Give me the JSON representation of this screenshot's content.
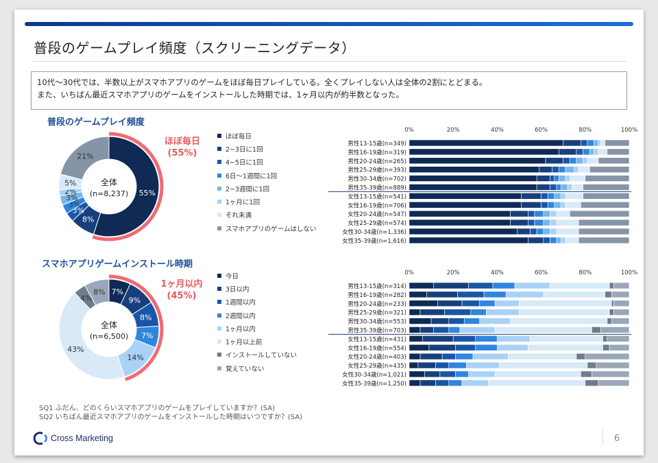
{
  "page": {
    "title": "普段のゲームプレイ頻度（スクリーニングデータ）",
    "summary_line1": "10代～30代では、半数以上がスマホアプリのゲームをほぼ毎日プレイしている。全くプレイしない人は全体の2割にとどまる。",
    "summary_line2": "また、いちばん最近スマホアプリのゲームをインストールした時期では、1ヶ月以内が約半数となった。",
    "footnote1": "SQ1  ふだん、どのくらいスマホアプリのゲームをプレイしていますか？(SA)",
    "footnote2": "SQ2  いちばん最近スマホアプリのゲームをインストールした時期はいつですか？(SA)",
    "logo_text": "Cross Marketing",
    "page_number": "6"
  },
  "chart_data": [
    {
      "type": "pie",
      "title": "普段のゲームプレイ頻度",
      "center_label": "全体",
      "center_n": "(n=8,237)",
      "callout_label": "ほぼ毎日",
      "callout_value": "(55%)",
      "slices": [
        {
          "label": "ほぼ毎日",
          "value": 55,
          "color": "#0e2a55"
        },
        {
          "label": "2~3日に1回",
          "value": 8,
          "color": "#173f7c"
        },
        {
          "label": "4~5日に1回",
          "value": 3,
          "color": "#1a56a8"
        },
        {
          "label": "6日～1週間に1回",
          "value": 3,
          "color": "#2f86de"
        },
        {
          "label": "2~3週間に1回",
          "value": 3,
          "color": "#74b6ef"
        },
        {
          "label": "1ヶ月に1回",
          "value": 2,
          "color": "#a9d2f6"
        },
        {
          "label": "それ未満",
          "value": 5,
          "color": "#d8e9f8"
        },
        {
          "label": "スマホアプリのゲームはしない",
          "value": 21,
          "color": "#8694a8"
        }
      ]
    },
    {
      "type": "bar",
      "stacked": true,
      "orientation": "horizontal",
      "xlim": [
        0,
        100
      ],
      "ticks": [
        "0%",
        "20%",
        "40%",
        "60%",
        "80%",
        "100%"
      ],
      "categories": [
        "男性13-15歳(n=349)",
        "男性16-19歳(n=319)",
        "男性20-24歳(n=265)",
        "男性25-29歳(n=393)",
        "男性30-34歳(n=702)",
        "男性35-39歳(n=889)",
        "女性13-15歳(n=541)",
        "女性16-19歳(n=706)",
        "女性20-24歳(n=547)",
        "女性25-29歳(n=574)",
        "女性30-34歳(n=1,336)",
        "女性35-39歳(n=1,616)"
      ],
      "series_colors": [
        "#0e2a55",
        "#173f7c",
        "#1a56a8",
        "#2f86de",
        "#74b6ef",
        "#a9d2f6",
        "#d8e9f8",
        "#8694a8"
      ],
      "rows": [
        [
          70,
          8,
          3,
          3,
          2,
          1,
          2,
          11
        ],
        [
          68,
          8,
          3,
          3,
          2,
          2,
          4,
          10
        ],
        [
          62,
          8,
          3,
          3,
          3,
          2,
          5,
          14
        ],
        [
          59,
          6,
          3,
          3,
          4,
          2,
          5,
          18
        ],
        [
          58,
          6,
          2,
          2,
          3,
          2,
          7,
          20
        ],
        [
          58,
          6,
          3,
          2,
          3,
          2,
          5,
          21
        ],
        [
          51,
          9,
          3,
          3,
          3,
          2,
          8,
          21
        ],
        [
          51,
          9,
          3,
          3,
          3,
          2,
          7,
          22
        ],
        [
          46,
          8,
          3,
          4,
          3,
          3,
          6,
          27
        ],
        [
          46,
          8,
          3,
          4,
          3,
          3,
          10,
          23
        ],
        [
          49,
          6,
          3,
          3,
          3,
          3,
          10,
          23
        ],
        [
          54,
          7,
          3,
          3,
          2,
          2,
          6,
          23
        ]
      ]
    },
    {
      "type": "pie",
      "title": "スマホアプリゲームインストール時期",
      "center_label": "全体",
      "center_n": "(n=6,500)",
      "callout_label": "1ヶ月以内",
      "callout_value": "(45%)",
      "slices": [
        {
          "label": "今日",
          "value": 7,
          "color": "#0e2a55"
        },
        {
          "label": "3日以内",
          "value": 9,
          "color": "#173f7c"
        },
        {
          "label": "1週間以内",
          "value": 8,
          "color": "#1a56a8"
        },
        {
          "label": "2週間以内",
          "value": 7,
          "color": "#2f86de"
        },
        {
          "label": "1ヶ月以内",
          "value": 14,
          "color": "#a9d2f6"
        },
        {
          "label": "1ヶ月以上前",
          "value": 43,
          "color": "#d8e9f8"
        },
        {
          "label": "インストールしていない",
          "value": 4,
          "color": "#6f7c8c"
        },
        {
          "label": "覚えていない",
          "value": 8,
          "color": "#9aa7b8"
        }
      ]
    },
    {
      "type": "bar",
      "stacked": true,
      "orientation": "horizontal",
      "xlim": [
        0,
        100
      ],
      "ticks": [
        "0%",
        "20%",
        "40%",
        "60%",
        "80%",
        "100%"
      ],
      "categories": [
        "男性13-15歳(n=314)",
        "男性16-19歳(n=282)",
        "男性20-24歳(n=233)",
        "男性25-29歳(n=321)",
        "男性30-34歳(n=553)",
        "男性35-39歳(n=703)",
        "女性13-15歳(n=431)",
        "女性16-19歳(n=554)",
        "女性20-24歳(n=403)",
        "女性25-29歳(n=435)",
        "女性30-34歳(n=1,021)",
        "女性35-39歳(n=1,250)"
      ],
      "series_colors": [
        "#0e2a55",
        "#173f7c",
        "#1a56a8",
        "#2f86de",
        "#a9d2f6",
        "#d8e9f8",
        "#6f7c8c",
        "#9aa7b8"
      ],
      "rows": [
        [
          11,
          16,
          11,
          10,
          16,
          27,
          2,
          7
        ],
        [
          8,
          14,
          12,
          10,
          17,
          28,
          3,
          8
        ],
        [
          13,
          11,
          8,
          7,
          11,
          42,
          1,
          7
        ],
        [
          5,
          11,
          12,
          7,
          15,
          41,
          2,
          7
        ],
        [
          10,
          8,
          7,
          7,
          14,
          44,
          2,
          8
        ],
        [
          5,
          6,
          7,
          5,
          16,
          44,
          4,
          13
        ],
        [
          6,
          14,
          10,
          10,
          15,
          33,
          2,
          10
        ],
        [
          9,
          12,
          9,
          10,
          14,
          34,
          3,
          9
        ],
        [
          5,
          10,
          6,
          8,
          16,
          31,
          4,
          20
        ],
        [
          4,
          8,
          6,
          8,
          15,
          40,
          4,
          15
        ],
        [
          7,
          7,
          7,
          6,
          12,
          39,
          5,
          17
        ],
        [
          5,
          7,
          6,
          6,
          12,
          44,
          6,
          14
        ]
      ]
    }
  ]
}
